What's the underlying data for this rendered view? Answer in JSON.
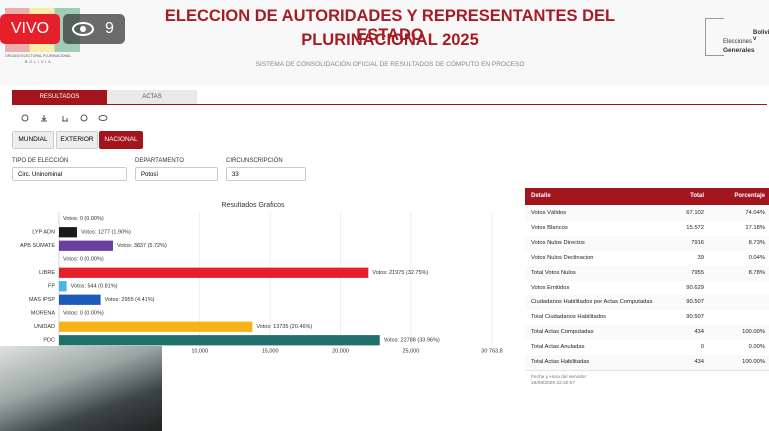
{
  "header": {
    "live_label": "VIVO",
    "viewer_count": 9,
    "logo_text": "ORGANO ELECTORAL PLURINACIONAL",
    "logo_country": "BOLIVIA",
    "title_line1": "ELECCION DE AUTORIDADES Y REPRESENTANTES DEL ESTADO",
    "title_line2": "PLURINACIONAL 2025",
    "subtitle": "SISTEMA DE CONSOLIDACIÓN OFICIAL DE RESULTADOS DE CÓMPUTO EN PROCESO",
    "brand_line1": "Bolivia v",
    "brand_line2": "Elecciones",
    "brand_line3": "Generales"
  },
  "tabs": [
    "RESULTADOS",
    "ACTAS"
  ],
  "scope_buttons": [
    "MUNDIAL",
    "EXTERIOR",
    "NACIONAL"
  ],
  "filters": [
    {
      "label": "TIPO DE ELECCIÓN",
      "value": "Circ. Uninominal"
    },
    {
      "label": "DEPARTAMENTO",
      "value": "Potosí"
    },
    {
      "label": "CIRCUNSCRIPCIÓN",
      "value": "33"
    }
  ],
  "chart_data": {
    "type": "bar",
    "orientation": "horizontal",
    "title": "Resultados Graficos",
    "categories": [
      null,
      "LYP ADN",
      "APB SÚMATE",
      null,
      "LIBRE",
      "FP",
      "MAS IPSP",
      "MORENA",
      "UNIDAD",
      "PDC"
    ],
    "values": [
      0,
      1277,
      3837,
      0,
      21975,
      544,
      2955,
      0,
      13735,
      22788
    ],
    "value_labels": [
      "Votos: 0 (0.00%)",
      "Votos: 1277 (1.90%)",
      "Votos: 3837 (5.72%)",
      "Votos: 0 (0.00%)",
      "Votos: 21975 (32.75%)",
      "Votos: 544 (0.81%)",
      "Votos: 2955 (4.41%)",
      "Votos: 0 (0.00%)",
      "Votos: 13735 (20.46%)",
      "Votos: 22788 (33.96%)"
    ],
    "colors": [
      "#cccccc",
      "#1a1a1a",
      "#6b3fa0",
      "#cccccc",
      "#e5202a",
      "#4fb3e8",
      "#1e5bb8",
      "#cccccc",
      "#f5b316",
      "#1f6f6b"
    ],
    "xlim": [
      0,
      30763.8
    ],
    "xticks": [
      {
        "value": 10000,
        "label": "10,000"
      },
      {
        "value": 15000,
        "label": "15,000"
      },
      {
        "value": 20000,
        "label": "20,000"
      },
      {
        "value": 25000,
        "label": "25,000"
      },
      {
        "value": 30763.8,
        "label": "30 763,8"
      }
    ],
    "grid": true
  },
  "table": {
    "headers": [
      "Detalle",
      "Total",
      "Porcentaje"
    ],
    "rows": [
      [
        "Votos Válidos",
        "67.102",
        "74.04%"
      ],
      [
        "Votos Blancos",
        "15.572",
        "17.18%"
      ],
      [
        "Votos Nulos Directos",
        "7916",
        "8.73%"
      ],
      [
        "Votos Nulos Declinacion",
        "39",
        "0.04%"
      ],
      [
        "Total Votos Nulos",
        "7955",
        "8.78%"
      ],
      [
        "Votos Emitidos",
        "90.629"
      ],
      [
        "Ciudadanos Habilitados por Actas Computadas",
        "90.507"
      ],
      [
        "Total Ciudadanos Habilitados",
        "90.507"
      ],
      [
        "Total Actas Computadas",
        "434",
        "100.00%"
      ],
      [
        "Total Actas Anuladas",
        "0",
        "0.00%"
      ],
      [
        "Total Actas Habilitadas",
        "434",
        "100.00%"
      ]
    ],
    "footer_label": "Fecha y Hora del servidor:",
    "footer_value": "18/08/2025  22:32:57"
  }
}
